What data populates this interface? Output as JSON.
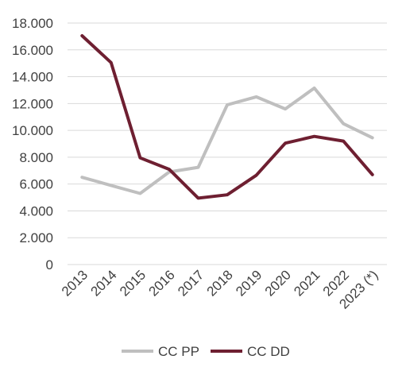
{
  "chart_data": {
    "type": "line",
    "categories": [
      "2013",
      "2014",
      "2015",
      "2016",
      "2017",
      "2018",
      "2019",
      "2020",
      "2021",
      "2022",
      "2023 (*)"
    ],
    "series": [
      {
        "name": "CC PP",
        "color": "#bfbfbf",
        "values": [
          6500,
          5900,
          5300,
          6900,
          7250,
          11900,
          12500,
          11600,
          13150,
          10500,
          9450
        ]
      },
      {
        "name": "CC DD",
        "color": "#6e1f31",
        "values": [
          17050,
          15050,
          7950,
          7100,
          4950,
          5200,
          6650,
          9050,
          9550,
          9200,
          6700
        ]
      }
    ],
    "ylim": [
      0,
      18000
    ],
    "yticks": [
      0,
      2000,
      4000,
      6000,
      8000,
      10000,
      12000,
      14000,
      16000,
      18000
    ],
    "ytick_labels": [
      "0",
      "2.000",
      "4.000",
      "6.000",
      "8.000",
      "10.000",
      "12.000",
      "14.000",
      "16.000",
      "18.000"
    ],
    "grid": true,
    "legend_position": "bottom",
    "title": "",
    "xlabel": "",
    "ylabel": ""
  }
}
